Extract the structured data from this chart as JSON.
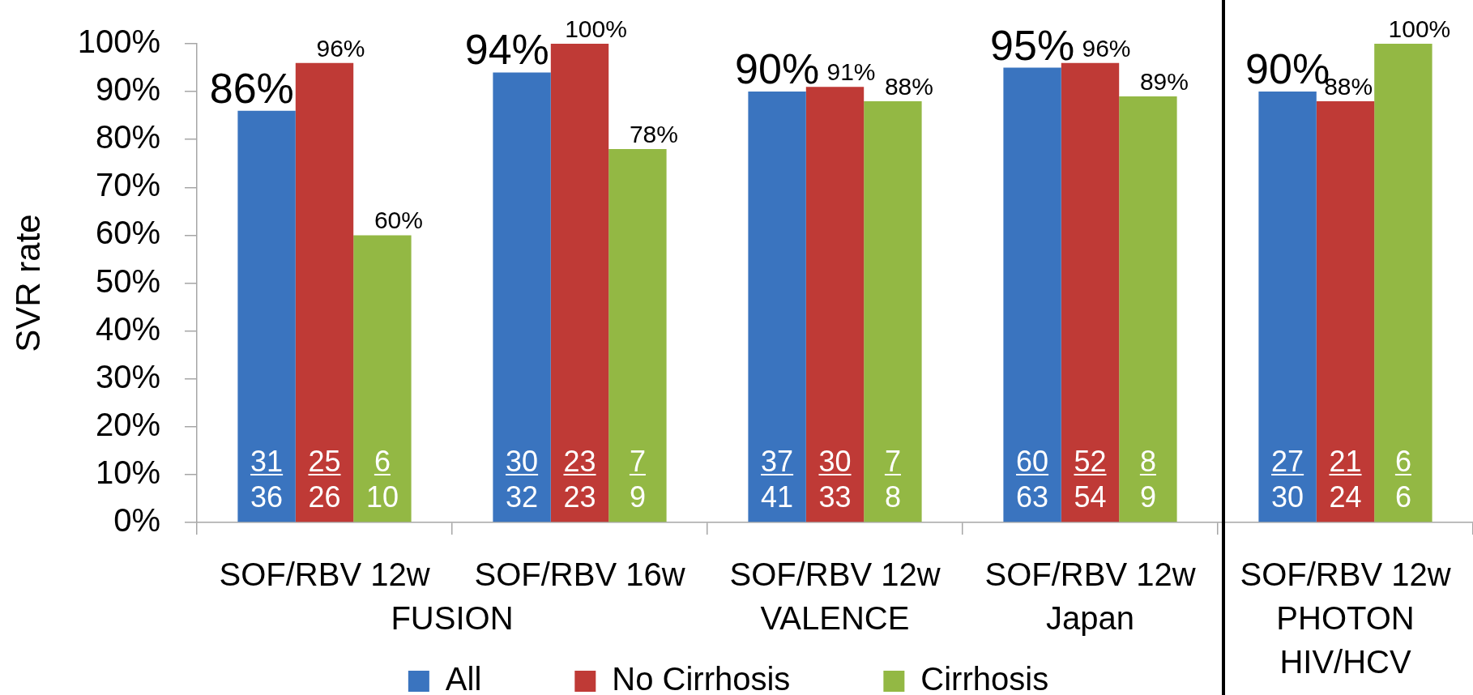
{
  "chart_data": {
    "type": "bar",
    "ylabel": "SVR rate",
    "categories": [
      "SOF/RBV 12w",
      "SOF/RBV 16w",
      "SOF/RBV 12w\nVALENCE",
      "SOF/RBV 12w\nJapan",
      "SOF/RBV 12w\nPHOTON\nHIV/HCV"
    ],
    "series": [
      {
        "name": "All",
        "color": "#3a74bf",
        "values": [
          86,
          94,
          90,
          95,
          90
        ],
        "value_labels": [
          "86%",
          "94%",
          "90%",
          "95%",
          "90%"
        ]
      },
      {
        "name": "No Cirrhosis",
        "color": "#bf3a36",
        "values": [
          96,
          100,
          91,
          96,
          88
        ],
        "value_labels": [
          "96%",
          "100%",
          "91%",
          "96%",
          "88%"
        ]
      },
      {
        "name": "Cirrhosis",
        "color": "#93b844",
        "values": [
          60,
          78,
          88,
          89,
          100
        ],
        "value_labels": [
          "60%",
          "78%",
          "88%",
          "89%",
          "100%"
        ]
      }
    ],
    "ylim": [
      0,
      100
    ],
    "yticks": [
      {
        "value": 0,
        "label": "0%"
      },
      {
        "value": 10,
        "label": "10%"
      },
      {
        "value": 20,
        "label": "20%"
      },
      {
        "value": 30,
        "label": "30%"
      },
      {
        "value": 40,
        "label": "40%"
      },
      {
        "value": 50,
        "label": "50%"
      },
      {
        "value": 60,
        "label": "60%"
      },
      {
        "value": 70,
        "label": "70%"
      },
      {
        "value": 80,
        "label": "80%"
      },
      {
        "value": 90,
        "label": "90%"
      },
      {
        "value": 100,
        "label": "100%"
      }
    ],
    "legend": "bottom",
    "annotations": [
      "31\n36",
      "25\n26",
      "6\n10",
      "30\n32",
      "23\n23",
      "7\n9",
      "37\n41",
      "30\n33",
      "7\n8",
      "60\n63",
      "52\n54",
      "8\n9",
      "27\n30",
      "21\n24",
      "6\n6",
      "FUSION"
    ]
  }
}
